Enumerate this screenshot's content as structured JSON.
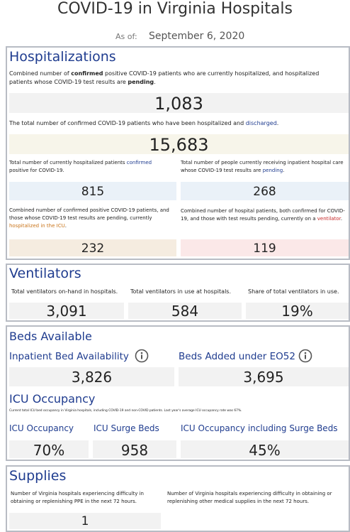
{
  "header": {
    "title": "COVID-19 in Virginia Hospitals",
    "as_of_label": "As of:",
    "date": "September 6, 2020"
  },
  "hospitalizations": {
    "title": "Hospitalizations",
    "current": {
      "text": [
        "Combined number of ",
        "confirmed",
        " positive COVID-19 patients who are currently hospitalized, and hospitalized patients whose COVID-19 test results are ",
        "pending",
        "."
      ],
      "value": "1,083"
    },
    "discharged": {
      "text": [
        "The total number of confirmed COVID-19 patients who have been hospitalized and ",
        "discharged",
        "."
      ],
      "value": "15,683"
    },
    "confirmed": {
      "text": [
        "Total number of currently hospitalized patients ",
        "confirmed",
        " positive for COVID-19."
      ],
      "value": "815"
    },
    "pending": {
      "text": [
        "Total number of people currently receiving inpatient hospital care whose COVID-19 test results are ",
        "pending",
        "."
      ],
      "value": "268"
    },
    "icu": {
      "text": [
        "Combined number of confirmed positive COVID-19 patients, and those whose COVID-19 test results are pending, currently ",
        "hospitalized in the ICU",
        "."
      ],
      "value": "232"
    },
    "ventilator": {
      "text": [
        "Combined number of hospital patients, both confirmed for COVID-19, and those with test results pending, currently on a ",
        "ventilator",
        "."
      ],
      "value": "119"
    }
  },
  "ventilators": {
    "title": "Ventilators",
    "items": [
      {
        "label": "Total ventilators on-hand in hospitals.",
        "value": "3,091"
      },
      {
        "label": "Total ventilators in use at hospitals.",
        "value": "584"
      },
      {
        "label": "Share of total ventilators in use.",
        "value": "19%"
      }
    ]
  },
  "beds": {
    "title": "Beds Available",
    "items": [
      {
        "label": "Inpatient Bed Availability",
        "value": "3,826"
      },
      {
        "label": "Beds Added under EO52",
        "value": "3,695"
      }
    ],
    "icu_title": "ICU Occupancy",
    "icu_note": "Current total ICU bed occupancy in Virginia hospitals, including COVID-19 and non-COVID patients. Last year's average ICU occupancy rate was 67%.",
    "icu_items": [
      {
        "label": "ICU Occupancy",
        "value": "70%"
      },
      {
        "label": "ICU Surge Beds",
        "value": "958"
      },
      {
        "label": "ICU Occupancy including Surge Beds",
        "value": "45%"
      }
    ]
  },
  "supplies": {
    "title": "Supplies",
    "items": [
      {
        "label": "Number of Virginia hospitals experiencing difficulty in obtaining or replenishing PPE in the next 72 hours.",
        "value": "1"
      },
      {
        "label": "Number of Virginia hospitals experiencing difficulty in obtaining or replenishing other medical supplies in the next 72 hours."
      }
    ]
  }
}
